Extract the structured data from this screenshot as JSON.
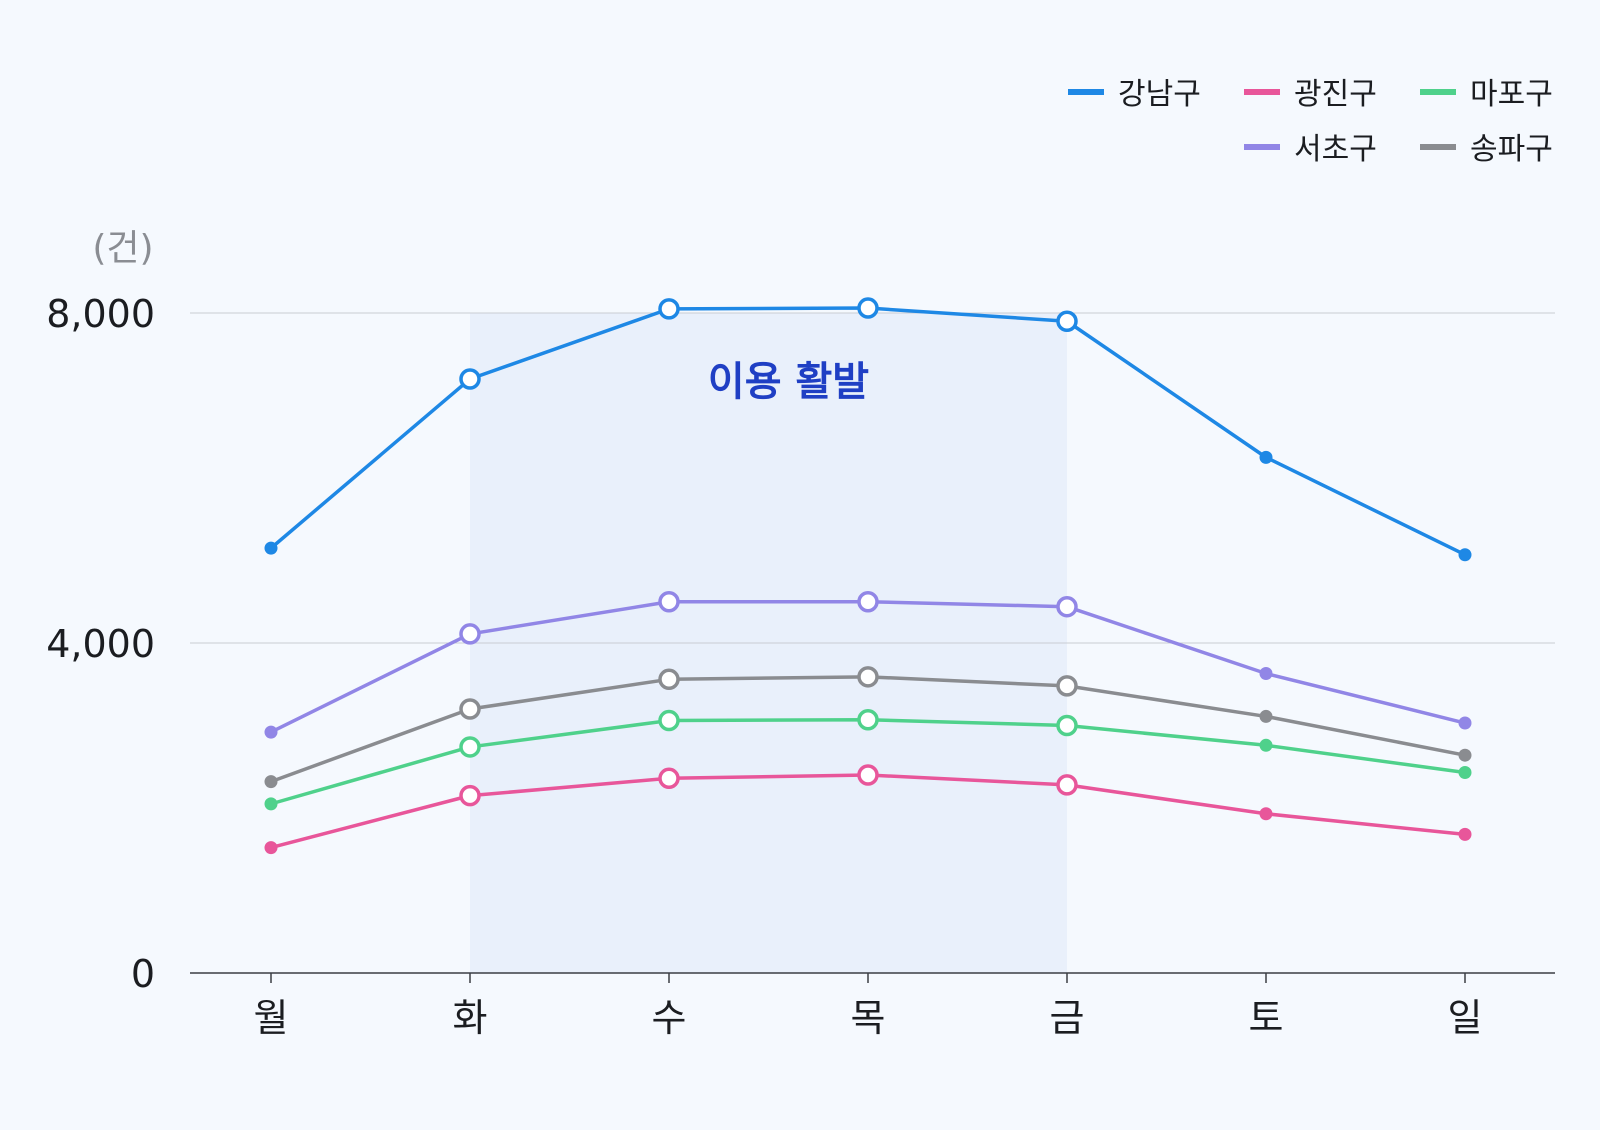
{
  "chart_data": {
    "type": "line",
    "title": "",
    "xlabel": "",
    "ylabel": "",
    "unit_label": "(건)",
    "categories": [
      "월",
      "화",
      "수",
      "목",
      "금",
      "토",
      "일"
    ],
    "y_ticks": [
      "0",
      "4,000",
      "8,000"
    ],
    "ylim": [
      0,
      8000
    ],
    "grid": true,
    "legend_position": "top-right",
    "highlight": {
      "label": "이용 활발",
      "from_category": "화",
      "to_category": "금",
      "color": "#1F3FC4"
    },
    "series": [
      {
        "name": "강남구",
        "color": "#1E88E5",
        "values": [
          5150,
          7200,
          8050,
          8060,
          7900,
          6250,
          5070
        ]
      },
      {
        "name": "광진구",
        "color": "#E8569A",
        "values": [
          1520,
          2150,
          2360,
          2400,
          2280,
          1930,
          1680
        ]
      },
      {
        "name": "마포구",
        "color": "#4FD18B",
        "values": [
          2050,
          2740,
          3060,
          3070,
          3000,
          2760,
          2430
        ]
      },
      {
        "name": "서초구",
        "color": "#9186E6",
        "values": [
          2920,
          4110,
          4500,
          4500,
          4440,
          3630,
          3030
        ]
      },
      {
        "name": "송파구",
        "color": "#8A8C90",
        "values": [
          2320,
          3200,
          3560,
          3590,
          3480,
          3110,
          2640
        ]
      }
    ]
  }
}
